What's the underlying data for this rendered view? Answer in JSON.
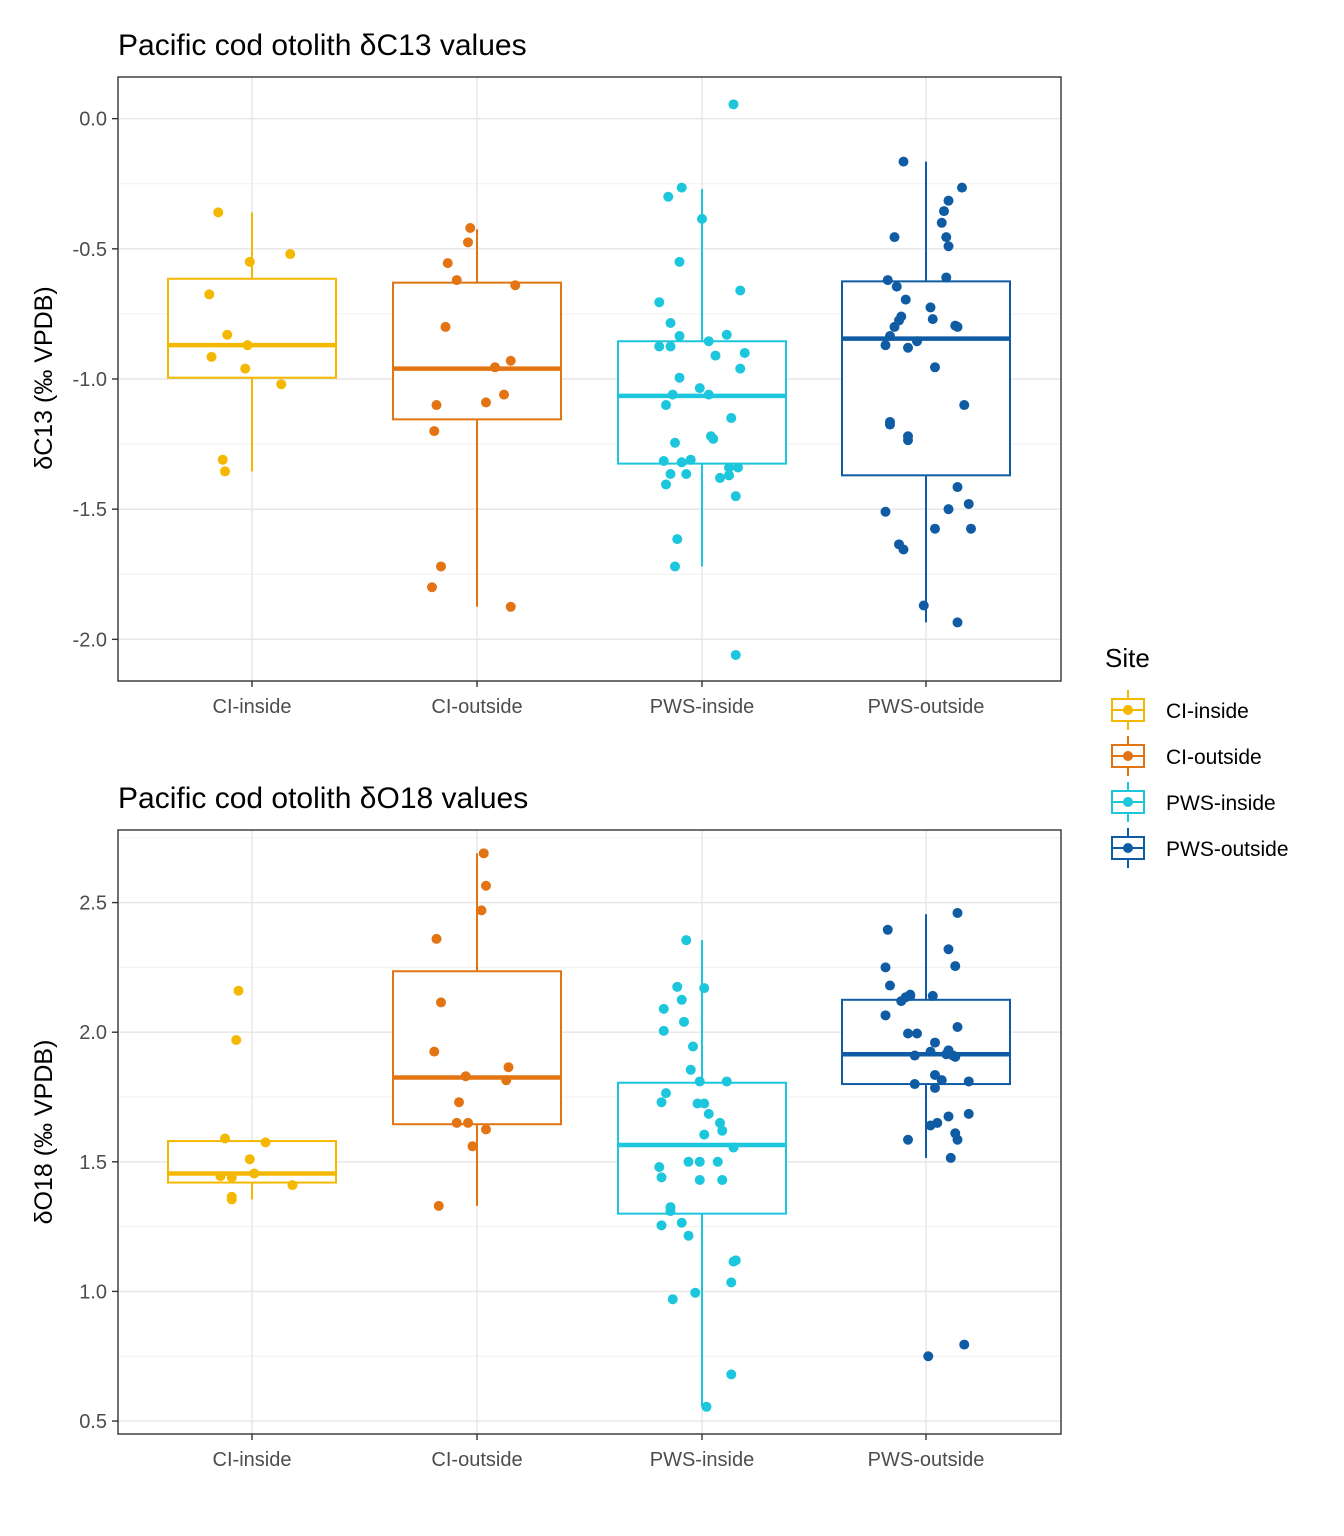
{
  "legend": {
    "title": "Site",
    "items": [
      {
        "label": "CI-inside",
        "color": "#F5B800"
      },
      {
        "label": "CI-outside",
        "color": "#E37413"
      },
      {
        "label": "PWS-inside",
        "color": "#1CC6DC"
      },
      {
        "label": "PWS-outside",
        "color": "#0F5CA4"
      }
    ]
  },
  "chart_data": [
    {
      "type": "box",
      "title": "Pacific cod otolith δC13 values",
      "xlabel": "",
      "ylabel": "δC13 (‰ VPDB)",
      "ylim": [
        -2.16,
        0.16
      ],
      "yticks": [
        {
          "value": 0.0,
          "label": "0.0"
        },
        {
          "value": -0.5,
          "label": "-0.5"
        },
        {
          "value": -1.0,
          "label": "-1.0"
        },
        {
          "value": -1.5,
          "label": "-1.5"
        },
        {
          "value": -2.0,
          "label": "-2.0"
        }
      ],
      "minor_grid": [
        0.25,
        -0.25,
        -0.75,
        -1.25,
        -1.75
      ],
      "categories": [
        "CI-inside",
        "CI-outside",
        "PWS-inside",
        "PWS-outside"
      ],
      "boxes": [
        {
          "q1": -0.995,
          "median": -0.87,
          "q3": -0.615,
          "whisker_low": -1.355,
          "whisker_high": -0.36
        },
        {
          "q1": -1.155,
          "median": -0.96,
          "q3": -0.63,
          "whisker_low": -1.875,
          "whisker_high": -0.425
        },
        {
          "q1": -1.325,
          "median": -1.065,
          "q3": -0.855,
          "whisker_low": -1.72,
          "whisker_high": -0.27
        },
        {
          "q1": -1.37,
          "median": -0.845,
          "q3": -0.625,
          "whisker_low": -1.935,
          "whisker_high": -0.165
        }
      ],
      "points": [
        [
          [
            -0.15,
            -0.36
          ],
          [
            -0.01,
            -0.55
          ],
          [
            0.17,
            -0.52
          ],
          [
            -0.19,
            -0.675
          ],
          [
            -0.11,
            -0.83
          ],
          [
            -0.02,
            -0.87
          ],
          [
            -0.18,
            -0.915
          ],
          [
            -0.03,
            -0.96
          ],
          [
            0.13,
            -1.02
          ],
          [
            -0.13,
            -1.31
          ],
          [
            -0.12,
            -1.355
          ]
        ],
        [
          [
            -0.03,
            -0.42
          ],
          [
            -0.04,
            -0.475
          ],
          [
            -0.13,
            -0.555
          ],
          [
            -0.09,
            -0.62
          ],
          [
            0.17,
            -0.64
          ],
          [
            -0.14,
            -0.8
          ],
          [
            0.15,
            -0.93
          ],
          [
            0.08,
            -0.955
          ],
          [
            0.12,
            -1.06
          ],
          [
            -0.18,
            -1.1
          ],
          [
            0.04,
            -1.09
          ],
          [
            -0.19,
            -1.2
          ],
          [
            -0.16,
            -1.72
          ],
          [
            -0.2,
            -1.8
          ],
          [
            0.15,
            -1.875
          ]
        ],
        [
          [
            0.14,
            0.055
          ],
          [
            -0.09,
            -0.265
          ],
          [
            -0.15,
            -0.3
          ],
          [
            0.0,
            -0.385
          ],
          [
            -0.1,
            -0.55
          ],
          [
            0.17,
            -0.66
          ],
          [
            -0.19,
            -0.705
          ],
          [
            -0.14,
            -0.785
          ],
          [
            -0.1,
            -0.835
          ],
          [
            0.03,
            -0.855
          ],
          [
            0.11,
            -0.83
          ],
          [
            -0.19,
            -0.875
          ],
          [
            -0.14,
            -0.875
          ],
          [
            0.06,
            -0.91
          ],
          [
            0.19,
            -0.9
          ],
          [
            0.17,
            -0.96
          ],
          [
            -0.1,
            -0.995
          ],
          [
            -0.01,
            -1.035
          ],
          [
            -0.13,
            -1.06
          ],
          [
            0.03,
            -1.06
          ],
          [
            -0.16,
            -1.1
          ],
          [
            0.13,
            -1.15
          ],
          [
            0.04,
            -1.22
          ],
          [
            -0.12,
            -1.245
          ],
          [
            0.05,
            -1.23
          ],
          [
            -0.17,
            -1.315
          ],
          [
            -0.09,
            -1.32
          ],
          [
            -0.05,
            -1.31
          ],
          [
            0.12,
            -1.34
          ],
          [
            0.16,
            -1.34
          ],
          [
            -0.14,
            -1.365
          ],
          [
            -0.07,
            -1.365
          ],
          [
            0.08,
            -1.38
          ],
          [
            0.12,
            -1.37
          ],
          [
            -0.16,
            -1.405
          ],
          [
            0.15,
            -1.45
          ],
          [
            -0.11,
            -1.615
          ],
          [
            -0.12,
            -1.72
          ],
          [
            0.15,
            -2.06
          ]
        ],
        [
          [
            -0.1,
            -0.165
          ],
          [
            0.16,
            -0.265
          ],
          [
            0.1,
            -0.315
          ],
          [
            0.08,
            -0.355
          ],
          [
            0.07,
            -0.4
          ],
          [
            -0.14,
            -0.455
          ],
          [
            0.09,
            -0.455
          ],
          [
            0.1,
            -0.49
          ],
          [
            -0.17,
            -0.62
          ],
          [
            0.09,
            -0.61
          ],
          [
            -0.13,
            -0.645
          ],
          [
            -0.09,
            -0.695
          ],
          [
            0.02,
            -0.725
          ],
          [
            -0.11,
            -0.76
          ],
          [
            -0.12,
            -0.775
          ],
          [
            0.03,
            -0.77
          ],
          [
            -0.14,
            -0.8
          ],
          [
            0.13,
            -0.795
          ],
          [
            0.14,
            -0.8
          ],
          [
            -0.16,
            -0.835
          ],
          [
            -0.04,
            -0.855
          ],
          [
            -0.18,
            -0.87
          ],
          [
            -0.08,
            -0.88
          ],
          [
            0.04,
            -0.955
          ],
          [
            0.17,
            -1.1
          ],
          [
            -0.16,
            -1.165
          ],
          [
            -0.16,
            -1.175
          ],
          [
            -0.08,
            -1.22
          ],
          [
            -0.08,
            -1.235
          ],
          [
            0.14,
            -1.415
          ],
          [
            0.1,
            -1.5
          ],
          [
            0.19,
            -1.48
          ],
          [
            -0.18,
            -1.51
          ],
          [
            0.04,
            -1.575
          ],
          [
            0.2,
            -1.575
          ],
          [
            -0.12,
            -1.635
          ],
          [
            -0.1,
            -1.655
          ],
          [
            -0.01,
            -1.87
          ],
          [
            0.14,
            -1.935
          ]
        ]
      ]
    },
    {
      "type": "box",
      "title": "Pacific cod otolith δO18 values",
      "xlabel": "",
      "ylabel": "δO18 (‰ VPDB)",
      "ylim": [
        0.45,
        2.78
      ],
      "yticks": [
        {
          "value": 2.5,
          "label": "2.5"
        },
        {
          "value": 2.0,
          "label": "2.0"
        },
        {
          "value": 1.5,
          "label": "1.5"
        },
        {
          "value": 1.0,
          "label": "1.0"
        },
        {
          "value": 0.5,
          "label": "0.5"
        }
      ],
      "minor_grid": [
        2.75,
        2.25,
        1.75,
        1.25,
        0.75
      ],
      "categories": [
        "CI-inside",
        "CI-outside",
        "PWS-inside",
        "PWS-outside"
      ],
      "boxes": [
        {
          "q1": 1.42,
          "median": 1.455,
          "q3": 1.58,
          "whisker_low": 1.355,
          "whisker_high": 1.58
        },
        {
          "q1": 1.645,
          "median": 1.825,
          "q3": 2.235,
          "whisker_low": 1.33,
          "whisker_high": 2.69
        },
        {
          "q1": 1.3,
          "median": 1.565,
          "q3": 1.805,
          "whisker_low": 0.555,
          "whisker_high": 2.355
        },
        {
          "q1": 1.8,
          "median": 1.915,
          "q3": 2.125,
          "whisker_low": 1.515,
          "whisker_high": 2.455
        }
      ],
      "points": [
        [
          [
            -0.06,
            2.16
          ],
          [
            -0.07,
            1.97
          ],
          [
            -0.12,
            1.59
          ],
          [
            0.06,
            1.575
          ],
          [
            -0.01,
            1.51
          ],
          [
            0.01,
            1.455
          ],
          [
            -0.14,
            1.445
          ],
          [
            -0.09,
            1.44
          ],
          [
            0.18,
            1.41
          ],
          [
            -0.09,
            1.365
          ],
          [
            -0.09,
            1.355
          ]
        ],
        [
          [
            0.03,
            2.69
          ],
          [
            0.04,
            2.565
          ],
          [
            0.02,
            2.47
          ],
          [
            -0.18,
            2.36
          ],
          [
            -0.16,
            2.115
          ],
          [
            -0.19,
            1.925
          ],
          [
            0.14,
            1.865
          ],
          [
            -0.05,
            1.83
          ],
          [
            0.13,
            1.815
          ],
          [
            -0.08,
            1.73
          ],
          [
            -0.09,
            1.65
          ],
          [
            -0.04,
            1.65
          ],
          [
            0.04,
            1.625
          ],
          [
            -0.02,
            1.56
          ],
          [
            -0.17,
            1.33
          ]
        ],
        [
          [
            -0.07,
            2.355
          ],
          [
            -0.11,
            2.175
          ],
          [
            0.01,
            2.17
          ],
          [
            -0.09,
            2.125
          ],
          [
            -0.17,
            2.09
          ],
          [
            -0.17,
            2.005
          ],
          [
            -0.08,
            2.04
          ],
          [
            -0.04,
            1.945
          ],
          [
            -0.05,
            1.855
          ],
          [
            -0.01,
            1.81
          ],
          [
            0.11,
            1.81
          ],
          [
            -0.16,
            1.765
          ],
          [
            -0.18,
            1.73
          ],
          [
            -0.02,
            1.725
          ],
          [
            0.01,
            1.725
          ],
          [
            0.03,
            1.685
          ],
          [
            0.08,
            1.65
          ],
          [
            0.09,
            1.62
          ],
          [
            0.01,
            1.605
          ],
          [
            0.14,
            1.555
          ],
          [
            -0.19,
            1.48
          ],
          [
            -0.06,
            1.5
          ],
          [
            -0.01,
            1.5
          ],
          [
            0.07,
            1.5
          ],
          [
            0.09,
            1.43
          ],
          [
            -0.01,
            1.43
          ],
          [
            -0.18,
            1.44
          ],
          [
            -0.14,
            1.325
          ],
          [
            -0.14,
            1.31
          ],
          [
            -0.18,
            1.255
          ],
          [
            -0.09,
            1.265
          ],
          [
            -0.06,
            1.215
          ],
          [
            0.15,
            1.12
          ],
          [
            0.14,
            1.115
          ],
          [
            0.13,
            1.035
          ],
          [
            -0.13,
            0.97
          ],
          [
            -0.03,
            0.995
          ],
          [
            0.13,
            0.68
          ],
          [
            0.02,
            0.555
          ]
        ],
        [
          [
            0.14,
            2.46
          ],
          [
            -0.17,
            2.395
          ],
          [
            0.1,
            2.32
          ],
          [
            -0.18,
            2.25
          ],
          [
            0.13,
            2.255
          ],
          [
            -0.16,
            2.18
          ],
          [
            -0.09,
            2.135
          ],
          [
            -0.07,
            2.145
          ],
          [
            -0.11,
            2.12
          ],
          [
            -0.07,
            2.14
          ],
          [
            0.03,
            2.14
          ],
          [
            -0.18,
            2.065
          ],
          [
            0.14,
            2.02
          ],
          [
            -0.08,
            1.995
          ],
          [
            -0.04,
            1.995
          ],
          [
            0.04,
            1.96
          ],
          [
            0.02,
            1.925
          ],
          [
            0.1,
            1.93
          ],
          [
            0.09,
            1.915
          ],
          [
            0.12,
            1.91
          ],
          [
            0.13,
            1.905
          ],
          [
            -0.05,
            1.91
          ],
          [
            0.04,
            1.835
          ],
          [
            0.07,
            1.815
          ],
          [
            0.19,
            1.81
          ],
          [
            -0.05,
            1.8
          ],
          [
            0.04,
            1.785
          ],
          [
            0.1,
            1.675
          ],
          [
            0.19,
            1.685
          ],
          [
            0.05,
            1.65
          ],
          [
            0.02,
            1.64
          ],
          [
            0.13,
            1.61
          ],
          [
            0.14,
            1.585
          ],
          [
            -0.08,
            1.585
          ],
          [
            0.11,
            1.515
          ],
          [
            0.01,
            0.75
          ],
          [
            0.17,
            0.795
          ]
        ]
      ]
    }
  ]
}
